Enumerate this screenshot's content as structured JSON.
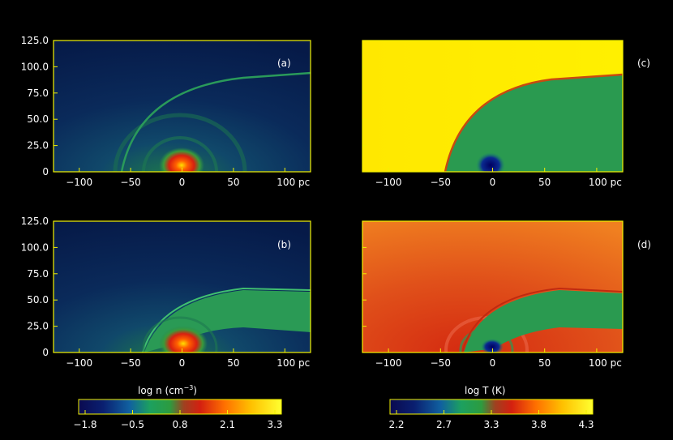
{
  "panels": [
    {
      "label": "(a)",
      "quantity": "density"
    },
    {
      "label": "(b)",
      "quantity": "density"
    },
    {
      "label": "(c)",
      "quantity": "temperature"
    },
    {
      "label": "(d)",
      "quantity": "temperature"
    }
  ],
  "x_ticks": [
    "−100",
    "−50",
    "0",
    "50",
    "100 pc"
  ],
  "y_ticks": [
    "0",
    "25.0",
    "50.0",
    "75.0",
    "100.0",
    "125.0"
  ],
  "colorbars": [
    {
      "title": "log n (cm",
      "title_sup": "−3",
      "title_end": ")",
      "ticks": [
        "−1.8",
        "−0.5",
        "0.8",
        "2.1",
        "3.3"
      ]
    },
    {
      "title": "log T (K)",
      "title_sup": "",
      "title_end": "",
      "ticks": [
        "2.2",
        "2.7",
        "3.3",
        "3.8",
        "4.3"
      ]
    }
  ],
  "colors": {
    "frame": "#f2f200",
    "colormap": [
      "#000040",
      "#0a2a6a",
      "#1a8a5a",
      "#2aa04a",
      "#c62a10",
      "#e24a10",
      "#ff9a00",
      "#ffe800",
      "#ffff40"
    ]
  }
}
